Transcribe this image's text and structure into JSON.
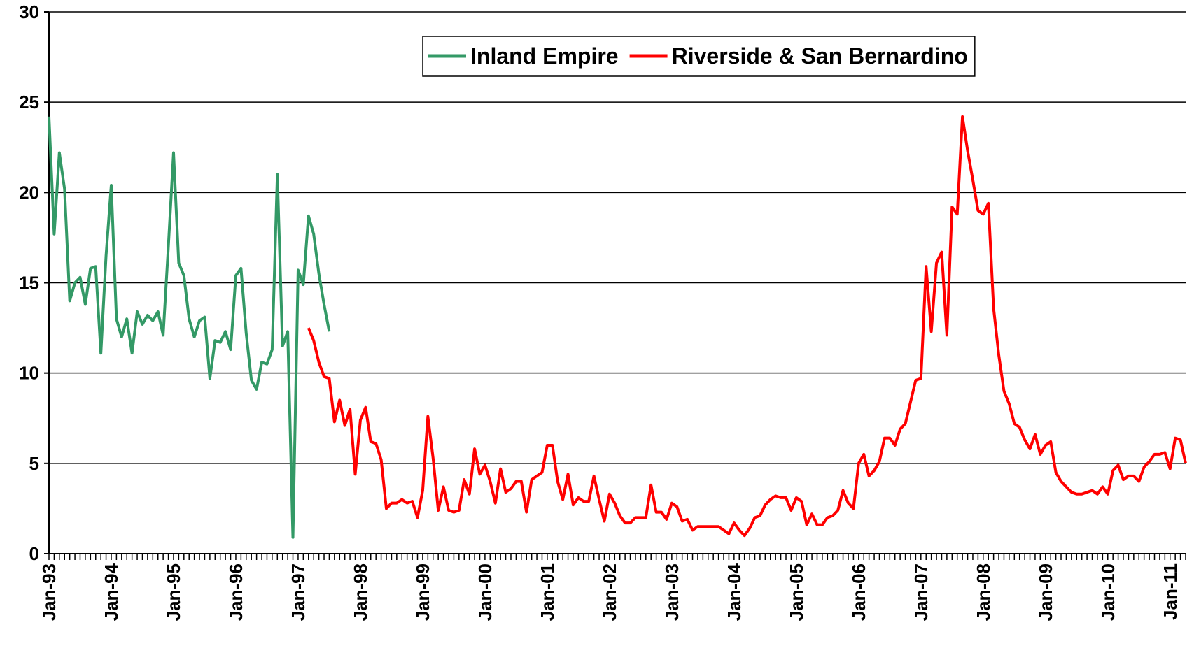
{
  "chart_data": {
    "type": "line",
    "categories": [
      "Jan-93",
      null,
      null,
      null,
      null,
      null,
      null,
      null,
      null,
      null,
      null,
      null,
      "Jan-94",
      null,
      null,
      null,
      null,
      null,
      null,
      null,
      null,
      null,
      null,
      null,
      "Jan-95",
      null,
      null,
      null,
      null,
      null,
      null,
      null,
      null,
      null,
      null,
      null,
      "Jan-96",
      null,
      null,
      null,
      null,
      null,
      null,
      null,
      null,
      null,
      null,
      null,
      "Jan-97",
      null,
      null,
      null,
      null,
      null,
      null,
      null,
      null,
      null,
      null,
      null,
      "Jan-98",
      null,
      null,
      null,
      null,
      null,
      null,
      null,
      null,
      null,
      null,
      null,
      "Jan-99",
      null,
      null,
      null,
      null,
      null,
      null,
      null,
      null,
      null,
      null,
      null,
      "Jan-00",
      null,
      null,
      null,
      null,
      null,
      null,
      null,
      null,
      null,
      null,
      null,
      "Jan-01",
      null,
      null,
      null,
      null,
      null,
      null,
      null,
      null,
      null,
      null,
      null,
      "Jan-02",
      null,
      null,
      null,
      null,
      null,
      null,
      null,
      null,
      null,
      null,
      null,
      "Jan-03",
      null,
      null,
      null,
      null,
      null,
      null,
      null,
      null,
      null,
      null,
      null,
      "Jan-04",
      null,
      null,
      null,
      null,
      null,
      null,
      null,
      null,
      null,
      null,
      null,
      "Jan-05",
      null,
      null,
      null,
      null,
      null,
      null,
      null,
      null,
      null,
      null,
      null,
      "Jan-06",
      null,
      null,
      null,
      null,
      null,
      null,
      null,
      null,
      null,
      null,
      null,
      "Jan-07",
      null,
      null,
      null,
      null,
      null,
      null,
      null,
      null,
      null,
      null,
      null,
      "Jan-08",
      null,
      null,
      null,
      null,
      null,
      null,
      null,
      null,
      null,
      null,
      null,
      "Jan-09",
      null,
      null,
      null,
      null,
      null,
      null,
      null,
      null,
      null,
      null,
      null,
      "Jan-10",
      null,
      null,
      null,
      null,
      null,
      null,
      null,
      null,
      null,
      null,
      null,
      "Jan-11",
      null,
      null,
      null
    ],
    "series": [
      {
        "name": "Inland Empire",
        "color": "#339966",
        "values": [
          24.2,
          17.7,
          22.2,
          20.2,
          14.0,
          15.0,
          15.3,
          13.8,
          15.8,
          15.9,
          11.1,
          16.5,
          20.4,
          13.0,
          12.0,
          13.0,
          11.1,
          13.4,
          12.7,
          13.2,
          12.9,
          13.4,
          12.1,
          17.0,
          22.2,
          16.1,
          15.4,
          13.0,
          12.0,
          12.9,
          13.1,
          9.7,
          11.8,
          11.7,
          12.3,
          11.3,
          15.4,
          15.8,
          12.2,
          9.6,
          9.1,
          10.6,
          10.5,
          11.3,
          21.0,
          11.5,
          12.3,
          0.9,
          15.7,
          14.9,
          18.7,
          17.7,
          15.5,
          13.8,
          12.3,
          null,
          null,
          null,
          null,
          null,
          null,
          null,
          null,
          null,
          null,
          null,
          null,
          null,
          null,
          null,
          null,
          null,
          null,
          null,
          null,
          null,
          null,
          null,
          null,
          null,
          null,
          null,
          null,
          null,
          null,
          null,
          null,
          null,
          null,
          null,
          null,
          null,
          null,
          null,
          null,
          null,
          null,
          null,
          null,
          null,
          null,
          null,
          null,
          null,
          null,
          null,
          null,
          null,
          null,
          null,
          null,
          null,
          null,
          null,
          null,
          null,
          null,
          null,
          null,
          null,
          null,
          null,
          null,
          null,
          null,
          null,
          null,
          null,
          null,
          null,
          null,
          null,
          null,
          null,
          null,
          null,
          null,
          null,
          null,
          null,
          null,
          null,
          null,
          null,
          null,
          null,
          null,
          null,
          null,
          null,
          null,
          null,
          null,
          null,
          null,
          null,
          null,
          null,
          null,
          null,
          null,
          null,
          null,
          null,
          null,
          null,
          null,
          null,
          null,
          null,
          null,
          null,
          null,
          null,
          null,
          null,
          null,
          null,
          null,
          null,
          null,
          null,
          null,
          null,
          null,
          null,
          null,
          null,
          null,
          null,
          null,
          null,
          null,
          null,
          null,
          null,
          null,
          null,
          null,
          null,
          null,
          null,
          null,
          null,
          null,
          null,
          null,
          null,
          null,
          null,
          null,
          null,
          null,
          null,
          null,
          null,
          null,
          null,
          null,
          null
        ]
      },
      {
        "name": "Riverside & San Bernardino",
        "color": "#ff0000",
        "values": [
          null,
          null,
          null,
          null,
          null,
          null,
          null,
          null,
          null,
          null,
          null,
          null,
          null,
          null,
          null,
          null,
          null,
          null,
          null,
          null,
          null,
          null,
          null,
          null,
          null,
          null,
          null,
          null,
          null,
          null,
          null,
          null,
          null,
          null,
          null,
          null,
          null,
          null,
          null,
          null,
          null,
          null,
          null,
          null,
          null,
          null,
          null,
          null,
          null,
          null,
          12.5,
          11.8,
          10.6,
          9.8,
          9.7,
          7.3,
          8.5,
          7.1,
          8.0,
          4.4,
          7.4,
          8.1,
          6.2,
          6.1,
          5.2,
          2.5,
          2.8,
          2.8,
          3.0,
          2.8,
          2.9,
          2.0,
          3.5,
          7.6,
          5.3,
          2.4,
          3.7,
          2.4,
          2.3,
          2.4,
          4.1,
          3.3,
          5.8,
          4.4,
          4.9,
          4.0,
          2.8,
          4.7,
          3.4,
          3.6,
          4.0,
          4.0,
          2.3,
          4.1,
          4.3,
          4.5,
          6.0,
          6.0,
          4.0,
          3.0,
          4.4,
          2.7,
          3.1,
          2.9,
          2.9,
          4.3,
          3.0,
          1.8,
          3.3,
          2.8,
          2.1,
          1.7,
          1.7,
          2.0,
          2.0,
          2.0,
          3.8,
          2.3,
          2.3,
          1.9,
          2.8,
          2.6,
          1.8,
          1.9,
          1.3,
          1.5,
          1.5,
          1.5,
          1.5,
          1.5,
          1.3,
          1.1,
          1.7,
          1.3,
          1.0,
          1.4,
          2.0,
          2.1,
          2.7,
          3.0,
          3.2,
          3.1,
          3.1,
          2.4,
          3.1,
          2.9,
          1.6,
          2.2,
          1.6,
          1.6,
          2.0,
          2.1,
          2.4,
          3.5,
          2.8,
          2.5,
          5.0,
          5.5,
          4.3,
          4.6,
          5.1,
          6.4,
          6.4,
          6.0,
          6.9,
          7.2,
          8.4,
          9.6,
          9.7,
          15.9,
          12.3,
          16.1,
          16.7,
          12.1,
          19.2,
          18.8,
          24.2,
          22.3,
          20.7,
          19.0,
          18.8,
          19.4,
          13.6,
          11.0,
          9.0,
          8.3,
          7.2,
          7.0,
          6.3,
          5.8,
          6.6,
          5.5,
          6.0,
          6.2,
          4.5,
          4.0,
          3.7,
          3.4,
          3.3,
          3.3,
          3.4,
          3.5,
          3.3,
          3.7,
          3.3,
          4.6,
          4.9,
          4.1,
          4.3,
          4.3,
          4.0,
          4.8,
          5.1,
          5.5,
          5.5,
          5.6,
          4.7,
          6.4,
          6.3,
          5.0
        ]
      }
    ],
    "ylim": [
      0,
      30
    ],
    "yticks": [
      0,
      5,
      10,
      15,
      20,
      25,
      30
    ],
    "grid": true
  }
}
